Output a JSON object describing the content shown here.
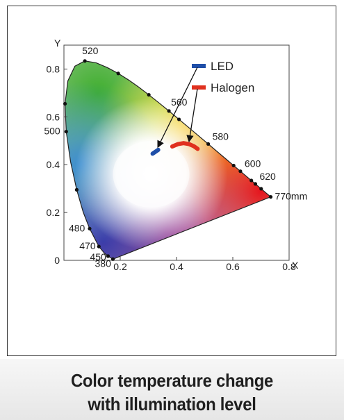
{
  "chart_data": {
    "type": "scatter",
    "title": "",
    "xlabel": "X",
    "ylabel": "Y",
    "xlim": [
      0,
      0.8
    ],
    "ylim": [
      0,
      0.9
    ],
    "x_ticks": [
      "0.2",
      "0.4",
      "0.6",
      "0.8"
    ],
    "y_ticks": [
      "0",
      "0.2",
      "0.4",
      "0.6",
      "0.8"
    ],
    "grid": false,
    "legend_position": "top-right",
    "spectral_locus": [
      {
        "x": 0.1741,
        "y": 0.005,
        "label": "380"
      },
      {
        "x": 0.1566,
        "y": 0.0177,
        "label": "450"
      },
      {
        "x": 0.144,
        "y": 0.0297,
        "label": ""
      },
      {
        "x": 0.1241,
        "y": 0.0578,
        "label": "470"
      },
      {
        "x": 0.0913,
        "y": 0.1327,
        "label": "480"
      },
      {
        "x": 0.0687,
        "y": 0.2007,
        "label": ""
      },
      {
        "x": 0.0454,
        "y": 0.295,
        "label": ""
      },
      {
        "x": 0.0235,
        "y": 0.4127,
        "label": ""
      },
      {
        "x": 0.0082,
        "y": 0.5384,
        "label": "500"
      },
      {
        "x": 0.0039,
        "y": 0.6548,
        "label": ""
      },
      {
        "x": 0.0139,
        "y": 0.7502,
        "label": ""
      },
      {
        "x": 0.0389,
        "y": 0.812,
        "label": ""
      },
      {
        "x": 0.0743,
        "y": 0.8338,
        "label": "520"
      },
      {
        "x": 0.1142,
        "y": 0.8262,
        "label": ""
      },
      {
        "x": 0.1547,
        "y": 0.8059,
        "label": ""
      },
      {
        "x": 0.1929,
        "y": 0.7816,
        "label": ""
      },
      {
        "x": 0.2296,
        "y": 0.7543,
        "label": ""
      },
      {
        "x": 0.2658,
        "y": 0.7243,
        "label": ""
      },
      {
        "x": 0.3016,
        "y": 0.6923,
        "label": ""
      },
      {
        "x": 0.3373,
        "y": 0.6589,
        "label": ""
      },
      {
        "x": 0.3731,
        "y": 0.6245,
        "label": "560"
      },
      {
        "x": 0.4087,
        "y": 0.5896,
        "label": ""
      },
      {
        "x": 0.4441,
        "y": 0.5547,
        "label": ""
      },
      {
        "x": 0.4788,
        "y": 0.5202,
        "label": ""
      },
      {
        "x": 0.5125,
        "y": 0.4866,
        "label": "580"
      },
      {
        "x": 0.5448,
        "y": 0.4544,
        "label": ""
      },
      {
        "x": 0.5752,
        "y": 0.4242,
        "label": ""
      },
      {
        "x": 0.6029,
        "y": 0.3965,
        "label": ""
      },
      {
        "x": 0.627,
        "y": 0.3725,
        "label": "600"
      },
      {
        "x": 0.6482,
        "y": 0.3514,
        "label": ""
      },
      {
        "x": 0.6658,
        "y": 0.334,
        "label": ""
      },
      {
        "x": 0.6801,
        "y": 0.3197,
        "label": "620"
      },
      {
        "x": 0.6915,
        "y": 0.3083,
        "label": ""
      },
      {
        "x": 0.7006,
        "y": 0.2993,
        "label": ""
      },
      {
        "x": 0.7079,
        "y": 0.292,
        "label": ""
      },
      {
        "x": 0.7347,
        "y": 0.2653,
        "label": "770mm"
      }
    ],
    "series": [
      {
        "name": "LED",
        "color": "#1f4fa8",
        "x": [
          0.315,
          0.335
        ],
        "y": [
          0.446,
          0.462
        ]
      },
      {
        "name": "Halogen",
        "color": "#e0301e",
        "x": [
          0.385,
          0.405,
          0.425,
          0.445,
          0.462,
          0.475
        ],
        "y": [
          0.476,
          0.486,
          0.49,
          0.486,
          0.477,
          0.466
        ]
      }
    ],
    "caption": [
      "Color temperature change",
      "with illumination level"
    ]
  }
}
